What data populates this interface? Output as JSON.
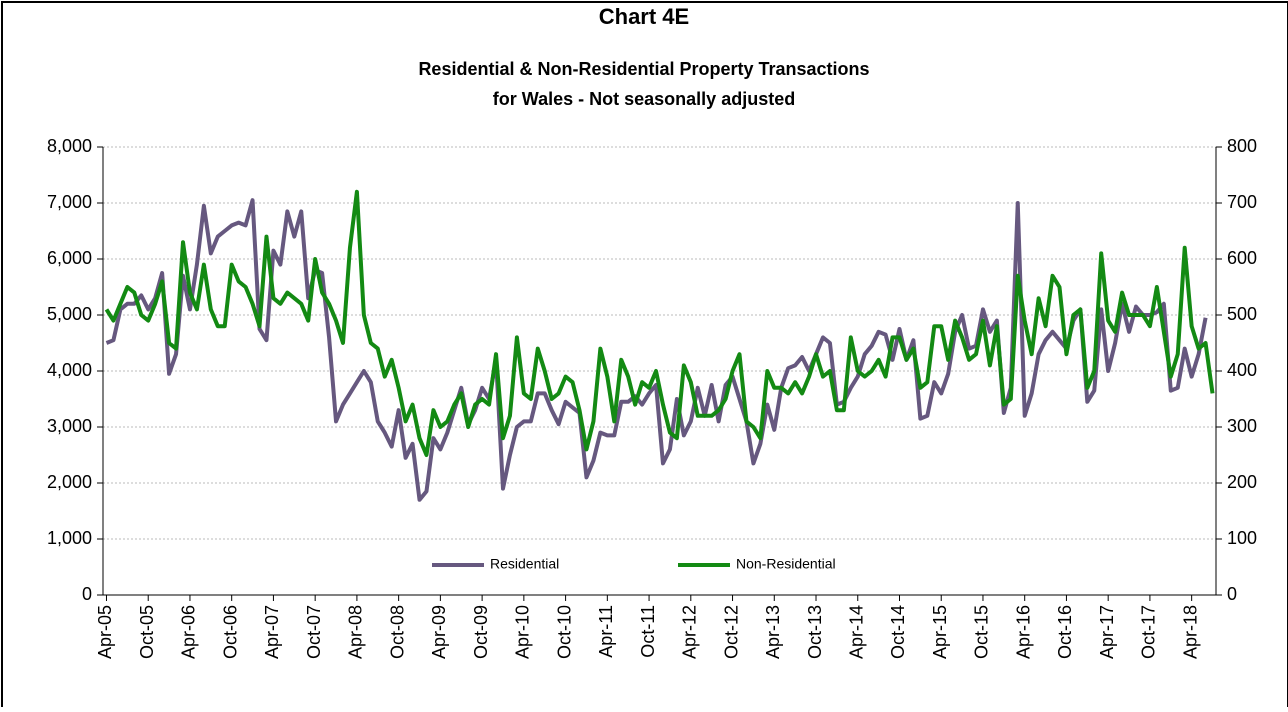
{
  "chart_data": {
    "type": "line",
    "title": "Chart 4E",
    "subtitle": [
      "Residential & Non-Residential Property Transactions",
      "for Wales - Not seasonally adjusted"
    ],
    "categories": [
      "Apr-05",
      null,
      null,
      null,
      null,
      null,
      "Oct-05",
      null,
      null,
      null,
      null,
      null,
      "Apr-06",
      null,
      null,
      null,
      null,
      null,
      "Oct-06",
      null,
      null,
      null,
      null,
      null,
      "Apr-07",
      null,
      null,
      null,
      null,
      null,
      "Oct-07",
      null,
      null,
      null,
      null,
      null,
      "Apr-08",
      null,
      null,
      null,
      null,
      null,
      "Oct-08",
      null,
      null,
      null,
      null,
      null,
      "Apr-09",
      null,
      null,
      null,
      null,
      null,
      "Oct-09",
      null,
      null,
      null,
      null,
      null,
      "Apr-10",
      null,
      null,
      null,
      null,
      null,
      "Oct-10",
      null,
      null,
      null,
      null,
      null,
      "Apr-11",
      null,
      null,
      null,
      null,
      null,
      "Oct-11",
      null,
      null,
      null,
      null,
      null,
      "Apr-12",
      null,
      null,
      null,
      null,
      null,
      "Oct-12",
      null,
      null,
      null,
      null,
      null,
      "Apr-13",
      null,
      null,
      null,
      null,
      null,
      "Oct-13",
      null,
      null,
      null,
      null,
      null,
      "Apr-14",
      null,
      null,
      null,
      null,
      null,
      "Oct-14",
      null,
      null,
      null,
      null,
      null,
      "Apr-15",
      null,
      null,
      null,
      null,
      null,
      "Oct-15",
      null,
      null,
      null,
      null,
      null,
      "Apr-16",
      null,
      null,
      null,
      null,
      null,
      "Oct-16",
      null,
      null,
      null,
      null,
      null,
      "Apr-17",
      null,
      null,
      null,
      null,
      null,
      "Oct-17",
      null,
      null,
      null,
      null,
      null,
      "Apr-18",
      null,
      null,
      null
    ],
    "series": [
      {
        "name": "Residential",
        "color": "#66587f",
        "axis": "y",
        "values": [
          4500,
          4550,
          5100,
          5200,
          5200,
          5350,
          5100,
          5300,
          5750,
          3950,
          4300,
          5700,
          5100,
          5900,
          6950,
          6100,
          6400,
          6500,
          6600,
          6650,
          6600,
          7050,
          4750,
          4550,
          6150,
          5900,
          6850,
          6400,
          6850,
          5300,
          5800,
          5750,
          4600,
          3100,
          3400,
          3600,
          3800,
          4000,
          3800,
          3100,
          2900,
          2650,
          3300,
          2450,
          2700,
          1700,
          1850,
          2800,
          2600,
          2900,
          3300,
          3700,
          3050,
          3300,
          3700,
          3500,
          4200,
          1900,
          2500,
          3000,
          3100,
          3100,
          3600,
          3600,
          3300,
          3050,
          3450,
          3350,
          3250,
          2100,
          2400,
          2900,
          2850,
          2850,
          3450,
          3450,
          3550,
          3400,
          3600,
          3750,
          2350,
          2600,
          3500,
          2850,
          3100,
          3700,
          3200,
          3750,
          3100,
          3750,
          3900,
          3500,
          3100,
          2350,
          2700,
          3400,
          2950,
          3700,
          4050,
          4100,
          4250,
          4000,
          4300,
          4600,
          4500,
          3400,
          3450,
          3700,
          3900,
          4300,
          4450,
          4700,
          4650,
          4200,
          4750,
          4200,
          4550,
          3150,
          3200,
          3800,
          3600,
          3950,
          4700,
          5000,
          4400,
          4450,
          5100,
          4700,
          4900,
          3250,
          3700,
          7000,
          3200,
          3600,
          4300,
          4550,
          4700,
          4550,
          4400,
          4900,
          5100,
          3450,
          3650,
          5100,
          4000,
          4500,
          5200,
          4700,
          5150,
          5000,
          5000,
          5050,
          5200,
          3650,
          3700,
          4400,
          3900,
          4300,
          4950,
          null
        ]
      },
      {
        "name": "Non-Residential",
        "color": "#138a13",
        "axis": "y2",
        "values": [
          510,
          490,
          520,
          550,
          540,
          500,
          490,
          520,
          560,
          450,
          440,
          630,
          540,
          510,
          590,
          510,
          480,
          480,
          590,
          560,
          550,
          520,
          480,
          640,
          530,
          520,
          540,
          530,
          520,
          490,
          600,
          540,
          520,
          490,
          450,
          620,
          720,
          500,
          450,
          440,
          390,
          420,
          370,
          310,
          340,
          280,
          250,
          330,
          300,
          310,
          340,
          360,
          300,
          340,
          350,
          340,
          430,
          280,
          320,
          460,
          360,
          350,
          440,
          400,
          350,
          360,
          390,
          380,
          330,
          260,
          310,
          440,
          390,
          310,
          420,
          390,
          340,
          380,
          370,
          400,
          340,
          290,
          280,
          410,
          380,
          320,
          320,
          320,
          330,
          350,
          400,
          430,
          310,
          300,
          280,
          400,
          370,
          370,
          360,
          380,
          360,
          390,
          430,
          390,
          400,
          330,
          330,
          460,
          400,
          390,
          400,
          420,
          390,
          460,
          460,
          420,
          440,
          370,
          380,
          480,
          480,
          420,
          490,
          460,
          420,
          430,
          490,
          410,
          480,
          340,
          350,
          570,
          490,
          430,
          530,
          480,
          570,
          550,
          430,
          500,
          510,
          370,
          400,
          610,
          490,
          470,
          540,
          500,
          500,
          500,
          480,
          550,
          470,
          390,
          430,
          620,
          480,
          440,
          450,
          360
        ]
      }
    ],
    "ylim": [
      0,
      8000
    ],
    "yticks": [
      0,
      {
        "value": 1000,
        "label": "1,000"
      },
      {
        "value": 2000,
        "label": "2,000"
      },
      {
        "value": 3000,
        "label": "3,000"
      },
      {
        "value": 4000,
        "label": "4,000"
      },
      {
        "value": 5000,
        "label": "5,000"
      },
      {
        "value": 6000,
        "label": "6,000"
      },
      {
        "value": 7000,
        "label": "7,000"
      },
      {
        "value": 8000,
        "label": "8,000"
      }
    ],
    "y2lim": [
      0,
      800
    ],
    "y2ticks": [
      0,
      100,
      200,
      300,
      400,
      500,
      600,
      700,
      800
    ],
    "grid": true,
    "legend": "bottom-center"
  }
}
